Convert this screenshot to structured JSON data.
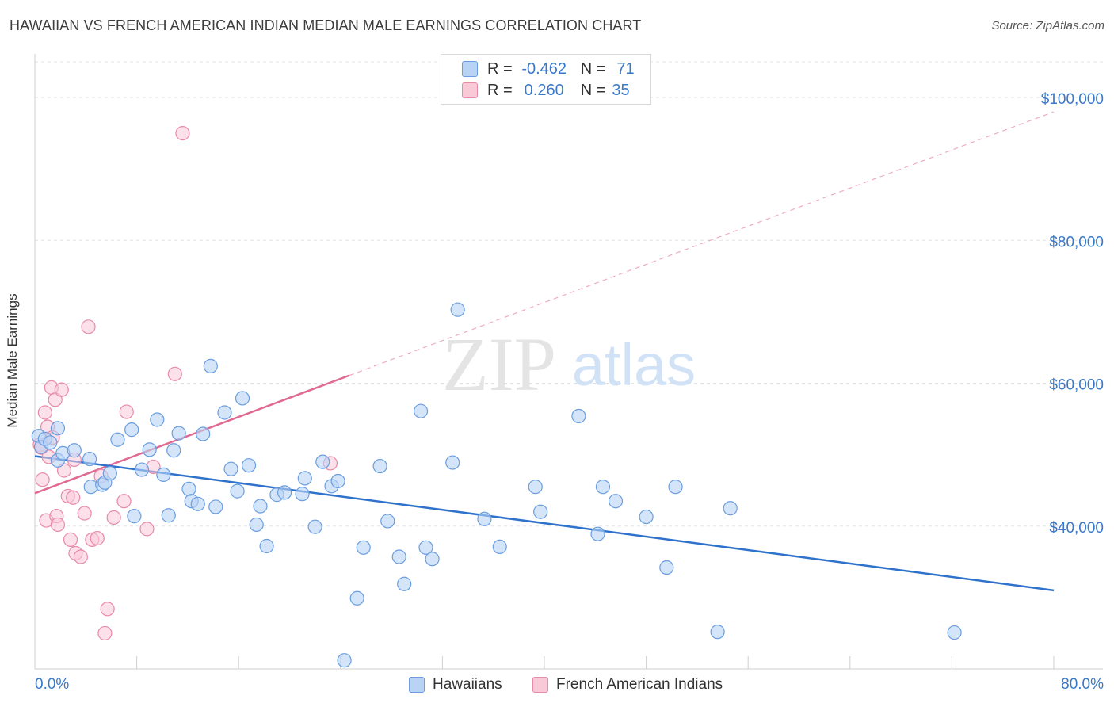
{
  "title": "HAWAIIAN VS FRENCH AMERICAN INDIAN MEDIAN MALE EARNINGS CORRELATION CHART",
  "source": "Source: ZipAtlas.com",
  "watermark": {
    "zip": "ZIP",
    "atlas": "atlas"
  },
  "colors": {
    "hawaiian_fill": "#b9d3f5",
    "hawaiian_stroke": "#6a9ee0",
    "hawaiian_line": "#2f72cc",
    "french_fill": "#f9c9d8",
    "french_stroke": "#e88aa8",
    "french_line": "#e06b92",
    "axis_label": "#3a78c9",
    "grid": "#e3e3e3"
  },
  "legend": {
    "row1": {
      "r_label": "R =",
      "r_value": "-0.462",
      "n_label": "N =",
      "n_value": "71"
    },
    "row2": {
      "r_label": "R =",
      "r_value": "0.260",
      "n_label": "N =",
      "n_value": "35"
    }
  },
  "bottom_legend": {
    "series1": "Hawaiians",
    "series2": "French American Indians"
  },
  "chart_data": {
    "type": "scatter",
    "title": "HAWAIIAN VS FRENCH AMERICAN INDIAN MEDIAN MALE EARNINGS CORRELATION CHART",
    "xlabel": "",
    "ylabel": "Median Male Earnings",
    "xlim": [
      0,
      80
    ],
    "ylim": [
      20000,
      105000
    ],
    "x_tick_labels": {
      "min": "0.0%",
      "max": "80.0%"
    },
    "y_ticks": [
      {
        "value": 40000,
        "label": "$40,000"
      },
      {
        "value": 60000,
        "label": "$60,000"
      },
      {
        "value": 80000,
        "label": "$80,000"
      },
      {
        "value": 100000,
        "label": "$100,000"
      }
    ],
    "grid": true,
    "legend_position": "top-center",
    "series": [
      {
        "name": "Hawaiians",
        "r": -0.462,
        "n": 71,
        "trend": {
          "x0": 0,
          "y0": 49800,
          "x1": 80,
          "y1": 31000
        },
        "points": [
          [
            0.3,
            52600
          ],
          [
            0.5,
            51100
          ],
          [
            0.8,
            52200
          ],
          [
            1.2,
            51700
          ],
          [
            1.8,
            53700
          ],
          [
            1.8,
            49200
          ],
          [
            2.2,
            50200
          ],
          [
            3.1,
            50600
          ],
          [
            4.3,
            49400
          ],
          [
            4.4,
            45500
          ],
          [
            5.3,
            45800
          ],
          [
            5.5,
            46100
          ],
          [
            5.9,
            47400
          ],
          [
            6.5,
            52100
          ],
          [
            7.6,
            53500
          ],
          [
            7.8,
            41400
          ],
          [
            8.4,
            47900
          ],
          [
            9.0,
            50700
          ],
          [
            9.6,
            54900
          ],
          [
            10.1,
            47200
          ],
          [
            10.5,
            41500
          ],
          [
            10.9,
            50600
          ],
          [
            11.3,
            53000
          ],
          [
            12.1,
            45200
          ],
          [
            12.3,
            43500
          ],
          [
            12.8,
            43100
          ],
          [
            13.2,
            52900
          ],
          [
            13.8,
            62400
          ],
          [
            14.2,
            42700
          ],
          [
            14.9,
            55900
          ],
          [
            15.4,
            48000
          ],
          [
            15.9,
            44900
          ],
          [
            16.3,
            57900
          ],
          [
            16.8,
            48500
          ],
          [
            17.4,
            40200
          ],
          [
            17.7,
            42800
          ],
          [
            18.2,
            37200
          ],
          [
            19.0,
            44400
          ],
          [
            19.6,
            44700
          ],
          [
            21.0,
            44500
          ],
          [
            21.2,
            46700
          ],
          [
            22.0,
            39900
          ],
          [
            22.6,
            49000
          ],
          [
            23.3,
            45600
          ],
          [
            23.8,
            46300
          ],
          [
            24.3,
            21200
          ],
          [
            25.3,
            29900
          ],
          [
            25.8,
            37000
          ],
          [
            27.1,
            48400
          ],
          [
            27.7,
            40700
          ],
          [
            28.6,
            35700
          ],
          [
            29.0,
            31900
          ],
          [
            30.3,
            56100
          ],
          [
            30.7,
            37000
          ],
          [
            31.2,
            35400
          ],
          [
            32.8,
            48900
          ],
          [
            33.2,
            70300
          ],
          [
            35.3,
            41000
          ],
          [
            36.5,
            37100
          ],
          [
            39.3,
            45500
          ],
          [
            39.7,
            42000
          ],
          [
            42.7,
            55400
          ],
          [
            44.2,
            38900
          ],
          [
            44.6,
            45500
          ],
          [
            45.6,
            43500
          ],
          [
            48.0,
            41300
          ],
          [
            49.6,
            34200
          ],
          [
            50.3,
            45500
          ],
          [
            53.6,
            25200
          ],
          [
            54.6,
            42500
          ],
          [
            72.2,
            25100
          ]
        ]
      },
      {
        "name": "French American Indians",
        "r": 0.26,
        "n": 35,
        "trend": {
          "x0": 0,
          "y0": 44600,
          "x1": 24.7,
          "y1": 61100,
          "x_ext": 80,
          "y_ext": 98000
        },
        "points": [
          [
            0.4,
            51400
          ],
          [
            0.5,
            51000
          ],
          [
            0.6,
            46500
          ],
          [
            0.8,
            55900
          ],
          [
            0.9,
            40800
          ],
          [
            1.0,
            53900
          ],
          [
            1.1,
            49700
          ],
          [
            1.3,
            59400
          ],
          [
            1.4,
            52400
          ],
          [
            1.6,
            57700
          ],
          [
            1.7,
            41400
          ],
          [
            1.8,
            40200
          ],
          [
            2.1,
            59100
          ],
          [
            2.3,
            47800
          ],
          [
            2.6,
            44200
          ],
          [
            2.8,
            38100
          ],
          [
            3.0,
            44000
          ],
          [
            3.1,
            49300
          ],
          [
            3.2,
            36200
          ],
          [
            3.6,
            35700
          ],
          [
            3.9,
            41800
          ],
          [
            4.2,
            67900
          ],
          [
            4.5,
            38100
          ],
          [
            4.9,
            38300
          ],
          [
            5.2,
            47000
          ],
          [
            5.5,
            25000
          ],
          [
            5.7,
            28400
          ],
          [
            6.2,
            41200
          ],
          [
            7.0,
            43500
          ],
          [
            7.2,
            56000
          ],
          [
            8.8,
            39600
          ],
          [
            9.3,
            48300
          ],
          [
            11.0,
            61300
          ],
          [
            11.6,
            95000
          ],
          [
            23.2,
            48800
          ]
        ]
      }
    ]
  }
}
